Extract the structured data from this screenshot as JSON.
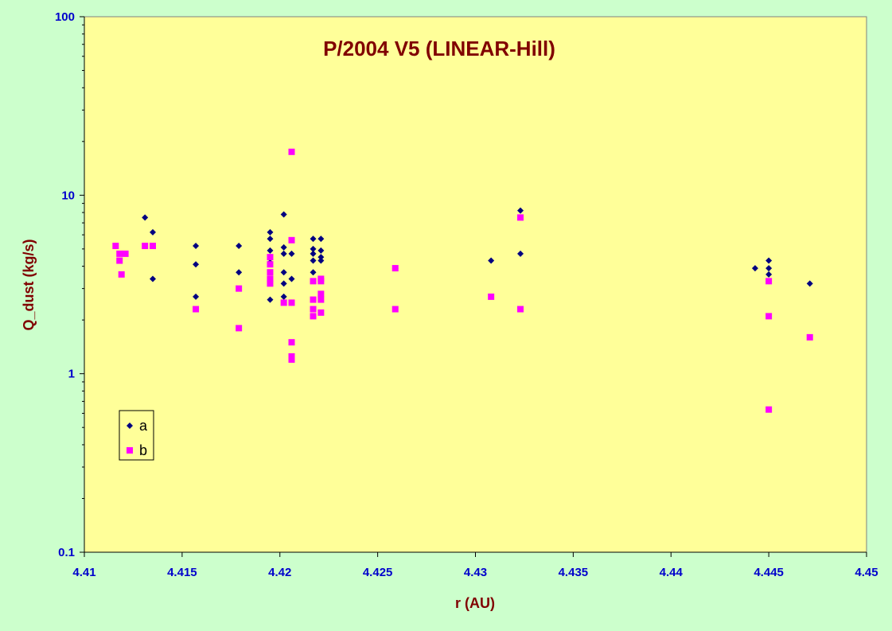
{
  "chart_data": {
    "type": "scatter",
    "title": "P/2004 V5 (LINEAR-Hill)",
    "xlabel": "r (AU)",
    "ylabel": "Q_dust (kg/s)",
    "xlim": [
      4.41,
      4.45
    ],
    "ylim": [
      0.1,
      100
    ],
    "yscale": "log",
    "x_ticks": [
      "4.41",
      "4.415",
      "4.42",
      "4.425",
      "4.43",
      "4.435",
      "4.44",
      "4.445",
      "4.45"
    ],
    "y_ticks": [
      "0.1",
      "1",
      "10",
      "100"
    ],
    "grid": false,
    "legend_position": "bottom-left",
    "series": [
      {
        "name": "a",
        "marker": "diamond",
        "color": "#000080",
        "points": [
          [
            4.4131,
            7.5
          ],
          [
            4.4135,
            6.2
          ],
          [
            4.4135,
            3.4
          ],
          [
            4.4157,
            5.2
          ],
          [
            4.4157,
            4.1
          ],
          [
            4.4157,
            2.7
          ],
          [
            4.4179,
            5.2
          ],
          [
            4.4179,
            3.7
          ],
          [
            4.4195,
            6.2
          ],
          [
            4.4195,
            5.7
          ],
          [
            4.4195,
            4.9
          ],
          [
            4.4195,
            4.2
          ],
          [
            4.4195,
            2.6
          ],
          [
            4.4202,
            7.8
          ],
          [
            4.4202,
            5.1
          ],
          [
            4.4202,
            4.7
          ],
          [
            4.4202,
            3.7
          ],
          [
            4.4202,
            3.2
          ],
          [
            4.4202,
            2.7
          ],
          [
            4.4206,
            4.7
          ],
          [
            4.4206,
            3.4
          ],
          [
            4.4206,
            2.5
          ],
          [
            4.4217,
            5.7
          ],
          [
            4.4217,
            5.0
          ],
          [
            4.4217,
            4.7
          ],
          [
            4.4217,
            4.3
          ],
          [
            4.4217,
            3.7
          ],
          [
            4.4221,
            5.7
          ],
          [
            4.4221,
            4.9
          ],
          [
            4.4221,
            4.5
          ],
          [
            4.4221,
            4.3
          ],
          [
            4.4259,
            3.9
          ],
          [
            4.4308,
            4.3
          ],
          [
            4.4323,
            8.2
          ],
          [
            4.4323,
            4.7
          ],
          [
            4.4443,
            3.9
          ],
          [
            4.445,
            4.3
          ],
          [
            4.445,
            3.9
          ],
          [
            4.445,
            3.6
          ],
          [
            4.445,
            3.3
          ],
          [
            4.4471,
            3.2
          ]
        ]
      },
      {
        "name": "b",
        "marker": "square",
        "color": "#ff00ff",
        "points": [
          [
            4.4116,
            5.2
          ],
          [
            4.4118,
            4.7
          ],
          [
            4.4118,
            4.3
          ],
          [
            4.4119,
            3.6
          ],
          [
            4.4121,
            4.7
          ],
          [
            4.4131,
            5.2
          ],
          [
            4.4135,
            5.2
          ],
          [
            4.4157,
            2.3
          ],
          [
            4.4179,
            3.0
          ],
          [
            4.4179,
            1.8
          ],
          [
            4.4195,
            4.5
          ],
          [
            4.4195,
            4.1
          ],
          [
            4.4195,
            3.7
          ],
          [
            4.4195,
            3.4
          ],
          [
            4.4195,
            3.2
          ],
          [
            4.4202,
            2.5
          ],
          [
            4.4206,
            17.5
          ],
          [
            4.4206,
            5.6
          ],
          [
            4.4206,
            2.5
          ],
          [
            4.4206,
            1.5
          ],
          [
            4.4206,
            1.25
          ],
          [
            4.4206,
            1.2
          ],
          [
            4.4217,
            3.3
          ],
          [
            4.4217,
            2.6
          ],
          [
            4.4217,
            2.3
          ],
          [
            4.4217,
            2.1
          ],
          [
            4.4221,
            3.4
          ],
          [
            4.4221,
            3.3
          ],
          [
            4.4221,
            2.8
          ],
          [
            4.4221,
            2.6
          ],
          [
            4.4221,
            2.2
          ],
          [
            4.4259,
            3.9
          ],
          [
            4.4259,
            2.3
          ],
          [
            4.4308,
            2.7
          ],
          [
            4.4323,
            7.5
          ],
          [
            4.4323,
            2.3
          ],
          [
            4.445,
            3.3
          ],
          [
            4.445,
            2.1
          ],
          [
            4.445,
            0.63
          ],
          [
            4.4471,
            1.6
          ]
        ]
      }
    ]
  }
}
